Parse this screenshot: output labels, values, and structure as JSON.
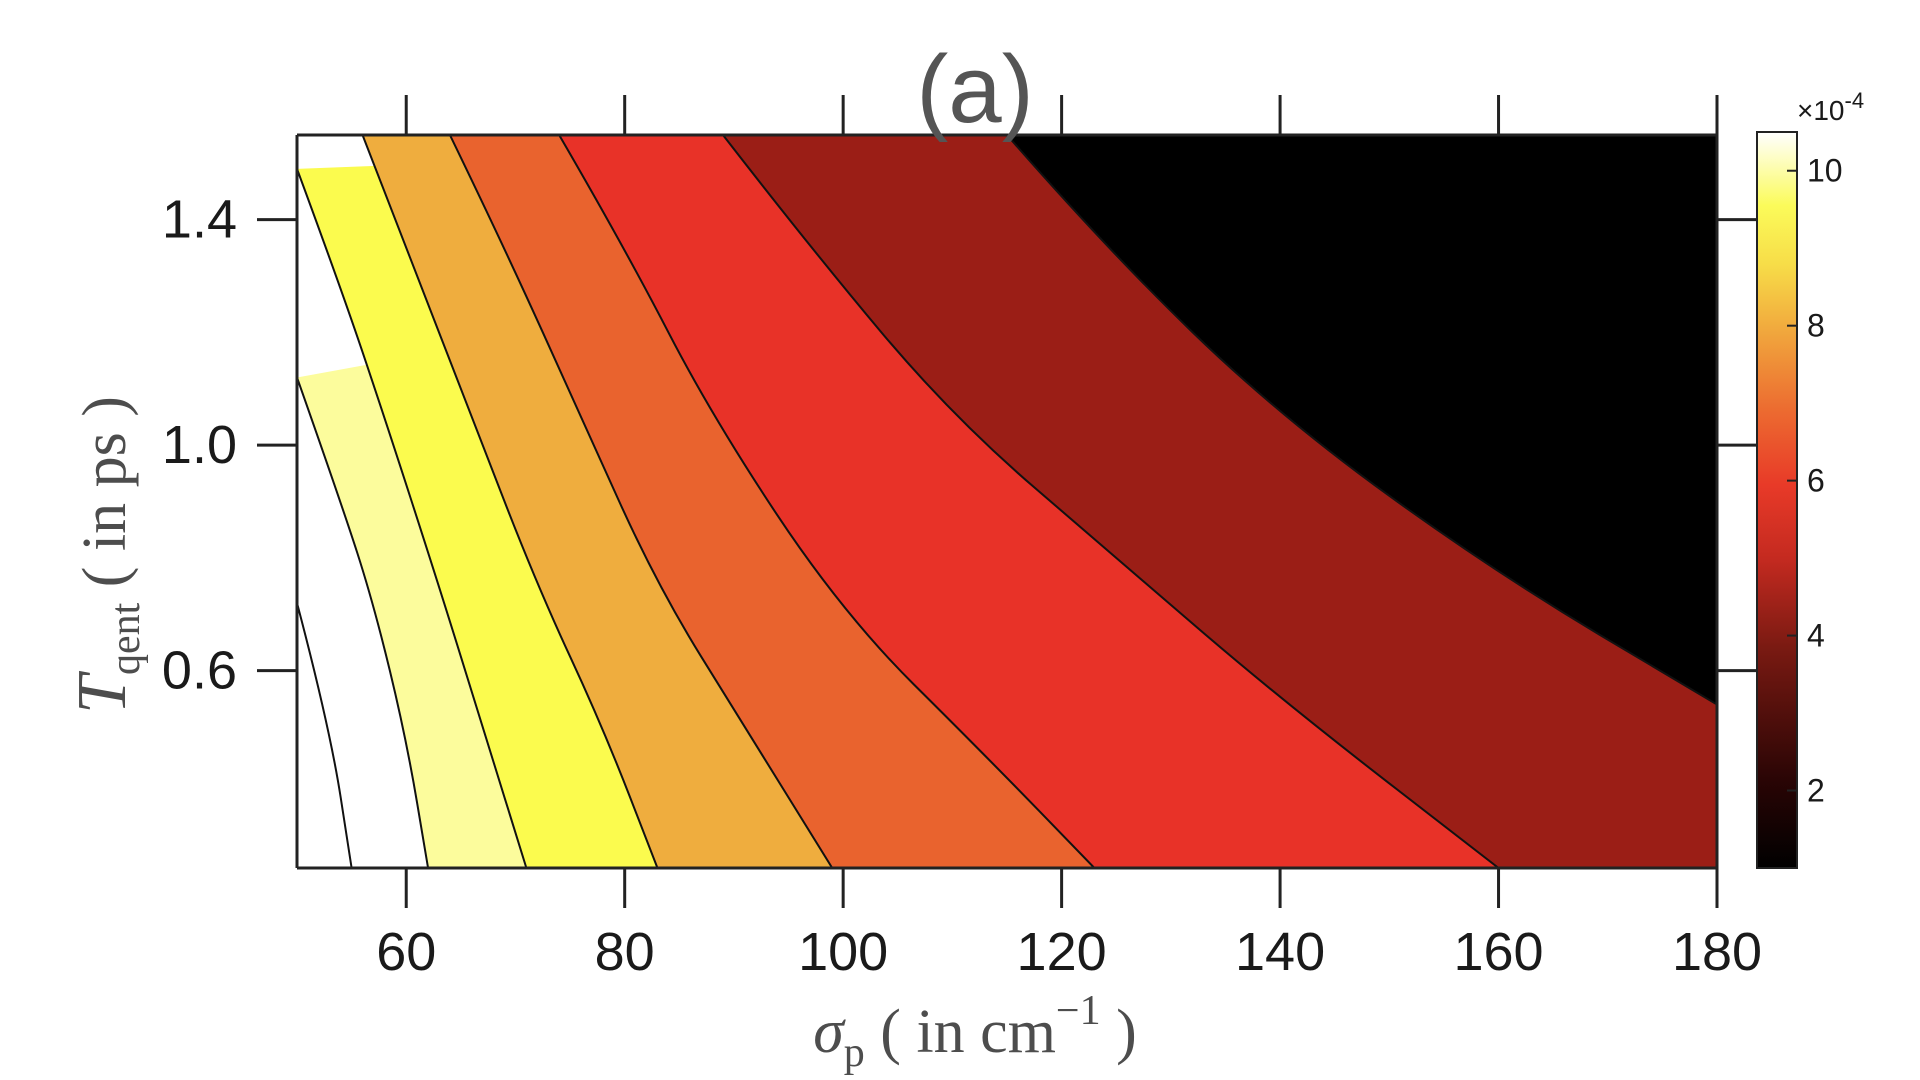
{
  "chart_data": {
    "type": "contour",
    "title": "(a)",
    "xlabel": {
      "symbol": "σ",
      "subscript": "p",
      "prefix": " ( in cm",
      "superscript": "−1",
      "suffix": " )"
    },
    "ylabel": {
      "symbol": "T",
      "subscript": "qent",
      "rest": " ( in ps )"
    },
    "xlim": [
      50,
      180
    ],
    "ylim": [
      0.25,
      1.55
    ],
    "x_ticks": [
      "60",
      "80",
      "100",
      "120",
      "140",
      "160",
      "180"
    ],
    "y_ticks": [
      "0.6",
      "1.0",
      "1.4"
    ],
    "colorbar": {
      "range": [
        1,
        10.5
      ],
      "ticks": [
        "2",
        "4",
        "6",
        "8",
        "10"
      ],
      "exponent_prefix": "×10",
      "exponent": "-4"
    },
    "contour_levels": [
      2.0,
      3.0,
      4.0,
      5.0,
      6.0,
      7.0,
      8.0,
      9.0
    ],
    "contour_lines": [
      {
        "level": 2.0,
        "points": [
          [
            115,
            1.55
          ],
          [
            124,
            1.35
          ],
          [
            140,
            1.05
          ],
          [
            160,
            0.77
          ],
          [
            180,
            0.54
          ]
        ]
      },
      {
        "level": 3.0,
        "points": [
          [
            89,
            1.55
          ],
          [
            97,
            1.35
          ],
          [
            110,
            1.05
          ],
          [
            125,
            0.8
          ],
          [
            140,
            0.55
          ],
          [
            160,
            0.25
          ]
        ]
      },
      {
        "level": 4.0,
        "points": [
          [
            74,
            1.55
          ],
          [
            80,
            1.35
          ],
          [
            88,
            1.05
          ],
          [
            100,
            0.7
          ],
          [
            113,
            0.45
          ],
          [
            123,
            0.25
          ]
        ]
      },
      {
        "level": 5.0,
        "points": [
          [
            64,
            1.55
          ],
          [
            69,
            1.35
          ],
          [
            76,
            1.05
          ],
          [
            83,
            0.75
          ],
          [
            91,
            0.5
          ],
          [
            99,
            0.25
          ]
        ]
      },
      {
        "level": 6.0,
        "points": [
          [
            56,
            1.55
          ],
          [
            60,
            1.35
          ],
          [
            66,
            1.05
          ],
          [
            72,
            0.75
          ],
          [
            78,
            0.5
          ],
          [
            83,
            0.25
          ]
        ]
      },
      {
        "level": 7.0,
        "points": [
          [
            50,
            1.49
          ],
          [
            54,
            1.28
          ],
          [
            58,
            1.05
          ],
          [
            63,
            0.75
          ],
          [
            67,
            0.5
          ],
          [
            71,
            0.25
          ]
        ]
      },
      {
        "level": 8.0,
        "points": [
          [
            50,
            1.12
          ],
          [
            54,
            0.9
          ],
          [
            57,
            0.72
          ],
          [
            60,
            0.48
          ],
          [
            62,
            0.25
          ]
        ]
      },
      {
        "level": 9.0,
        "points": [
          [
            50,
            0.72
          ],
          [
            53,
            0.5
          ],
          [
            55,
            0.25
          ]
        ]
      }
    ],
    "colormap": [
      "#000000",
      "#560b09",
      "#9b1e16",
      "#e83228",
      "#e9632e",
      "#efad3e",
      "#fbfb4e",
      "#fcfc9c",
      "#ffffff"
    ]
  }
}
